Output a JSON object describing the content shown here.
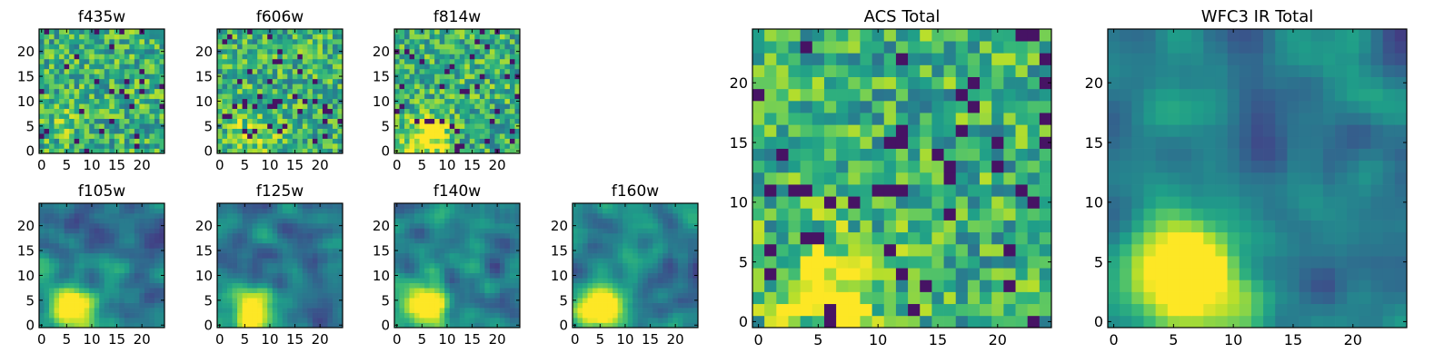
{
  "chart_data": [
    {
      "type": "heatmap",
      "title": "f435w",
      "xlabel": "",
      "ylabel": "",
      "xlim": [
        0,
        25
      ],
      "ylim": [
        0,
        25
      ],
      "x_ticks": [
        "0",
        "5",
        "10",
        "15",
        "20"
      ],
      "y_ticks": [
        "0",
        "5",
        "10",
        "15",
        "20"
      ],
      "grid": false,
      "colormap": "viridis",
      "pattern": "noise",
      "hotspot": [
        6,
        6
      ],
      "hotspot_strength": 0.1
    },
    {
      "type": "heatmap",
      "title": "f606w",
      "xlabel": "",
      "ylabel": "",
      "xlim": [
        0,
        25
      ],
      "ylim": [
        0,
        25
      ],
      "x_ticks": [
        "0",
        "5",
        "10",
        "15",
        "20"
      ],
      "y_ticks": [
        "0",
        "5",
        "10",
        "15",
        "20"
      ],
      "grid": false,
      "colormap": "viridis",
      "pattern": "noise",
      "hotspot": [
        7,
        4
      ],
      "hotspot_strength": 0.2
    },
    {
      "type": "heatmap",
      "title": "f814w",
      "xlabel": "",
      "ylabel": "",
      "xlim": [
        0,
        25
      ],
      "ylim": [
        0,
        25
      ],
      "x_ticks": [
        "0",
        "5",
        "10",
        "15",
        "20"
      ],
      "y_ticks": [
        "0",
        "5",
        "10",
        "15",
        "20"
      ],
      "grid": false,
      "colormap": "viridis",
      "pattern": "noise",
      "hotspot": [
        6,
        3
      ],
      "hotspot_strength": 0.4
    },
    {
      "type": "heatmap",
      "title": "f105w",
      "xlabel": "",
      "ylabel": "",
      "xlim": [
        0,
        25
      ],
      "ylim": [
        0,
        25
      ],
      "x_ticks": [
        "0",
        "5",
        "10",
        "15",
        "20"
      ],
      "y_ticks": [
        "0",
        "5",
        "10",
        "15",
        "20"
      ],
      "grid": false,
      "colormap": "viridis",
      "pattern": "smooth",
      "hotspot": [
        6,
        4
      ],
      "hotspot_strength": 0.55
    },
    {
      "type": "heatmap",
      "title": "f125w",
      "xlabel": "",
      "ylabel": "",
      "xlim": [
        0,
        25
      ],
      "ylim": [
        0,
        25
      ],
      "x_ticks": [
        "0",
        "5",
        "10",
        "15",
        "20"
      ],
      "y_ticks": [
        "0",
        "5",
        "10",
        "15",
        "20"
      ],
      "grid": false,
      "colormap": "viridis",
      "pattern": "smooth",
      "hotspot": [
        6,
        3
      ],
      "hotspot_strength": 0.5
    },
    {
      "type": "heatmap",
      "title": "f140w",
      "xlabel": "",
      "ylabel": "",
      "xlim": [
        0,
        25
      ],
      "ylim": [
        0,
        25
      ],
      "x_ticks": [
        "0",
        "5",
        "10",
        "15",
        "20"
      ],
      "y_ticks": [
        "0",
        "5",
        "10",
        "15",
        "20"
      ],
      "grid": false,
      "colormap": "viridis",
      "pattern": "smooth",
      "hotspot": [
        6,
        4
      ],
      "hotspot_strength": 0.55
    },
    {
      "type": "heatmap",
      "title": "f160w",
      "xlabel": "",
      "ylabel": "",
      "xlim": [
        0,
        25
      ],
      "ylim": [
        0,
        25
      ],
      "x_ticks": [
        "0",
        "5",
        "10",
        "15",
        "20"
      ],
      "y_ticks": [
        "0",
        "5",
        "10",
        "15",
        "20"
      ],
      "grid": false,
      "colormap": "viridis",
      "pattern": "smooth",
      "hotspot": [
        5,
        4
      ],
      "hotspot_strength": 0.6
    },
    {
      "type": "heatmap",
      "title": "ACS Total",
      "xlabel": "",
      "ylabel": "",
      "xlim": [
        0,
        25
      ],
      "ylim": [
        0,
        25
      ],
      "x_ticks": [
        "0",
        "5",
        "10",
        "15",
        "20"
      ],
      "y_ticks": [
        "0",
        "5",
        "10",
        "15",
        "20"
      ],
      "grid": false,
      "colormap": "viridis",
      "pattern": "noise",
      "hotspot": [
        6,
        3
      ],
      "hotspot_strength": 0.35
    },
    {
      "type": "heatmap",
      "title": "WFC3 IR Total",
      "xlabel": "",
      "ylabel": "",
      "xlim": [
        0,
        25
      ],
      "ylim": [
        0,
        25
      ],
      "x_ticks": [
        "0",
        "5",
        "10",
        "15",
        "20"
      ],
      "y_ticks": [
        "0",
        "5",
        "10",
        "15",
        "20"
      ],
      "grid": false,
      "colormap": "viridis",
      "pattern": "smooth",
      "hotspot": [
        6,
        4
      ],
      "hotspot_strength": 0.65
    }
  ]
}
